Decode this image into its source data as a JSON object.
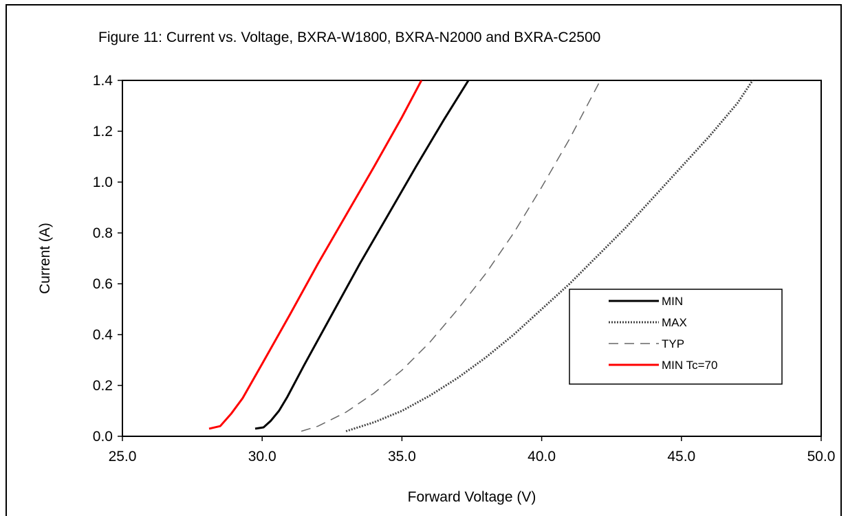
{
  "figure": {
    "title": "Figure 11:  Current vs. Voltage, BXRA-W1800, BXRA-N2000 and BXRA-C2500"
  },
  "chart_data": {
    "type": "line",
    "title": "Figure 11:  Current vs. Voltage, BXRA-W1800, BXRA-N2000 and BXRA-C2500",
    "xlabel": "Forward Voltage (V)",
    "ylabel": "Current  (A)",
    "xlim": [
      25.0,
      50.0
    ],
    "ylim": [
      0.0,
      1.4
    ],
    "x_ticks": [
      "25.0",
      "30.0",
      "35.0",
      "40.0",
      "45.0",
      "50.0"
    ],
    "y_ticks": [
      "0.0",
      "0.2",
      "0.4",
      "0.6",
      "0.8",
      "1.0",
      "1.2",
      "1.4"
    ],
    "grid": false,
    "legend_position": "right",
    "series": [
      {
        "name": "MIN",
        "color": "#000000",
        "style": "solid",
        "x": [
          29.75,
          30.05,
          30.3,
          30.6,
          30.9,
          31.5,
          32.5,
          33.5,
          34.5,
          35.5,
          36.5,
          37.38
        ],
        "y": [
          0.03,
          0.035,
          0.06,
          0.1,
          0.155,
          0.28,
          0.48,
          0.68,
          0.87,
          1.06,
          1.245,
          1.4
        ]
      },
      {
        "name": "MAX",
        "color": "#444444",
        "style": "dotted",
        "x": [
          33.0,
          34.0,
          35.0,
          36.0,
          37.0,
          38.0,
          39.0,
          40.0,
          41.0,
          42.0,
          43.0,
          44.0,
          45.0,
          46.0,
          47.0,
          47.55
        ],
        "y": [
          0.02,
          0.055,
          0.1,
          0.16,
          0.23,
          0.31,
          0.4,
          0.5,
          0.6,
          0.71,
          0.82,
          0.94,
          1.06,
          1.18,
          1.31,
          1.4
        ]
      },
      {
        "name": "TYP",
        "color": "#666666",
        "style": "dashed",
        "x": [
          31.4,
          32.0,
          33.0,
          34.0,
          35.0,
          36.0,
          37.0,
          38.0,
          39.0,
          40.0,
          41.0,
          42.1
        ],
        "y": [
          0.02,
          0.04,
          0.095,
          0.17,
          0.26,
          0.37,
          0.5,
          0.64,
          0.8,
          0.98,
          1.17,
          1.4
        ]
      },
      {
        "name": "MIN Tc=70",
        "color": "#ff0000",
        "style": "solid",
        "x": [
          28.1,
          28.5,
          28.9,
          29.3,
          30.0,
          31.0,
          32.0,
          33.0,
          34.0,
          35.0,
          35.7
        ],
        "y": [
          0.03,
          0.04,
          0.09,
          0.15,
          0.285,
          0.48,
          0.68,
          0.87,
          1.06,
          1.255,
          1.4
        ]
      }
    ]
  }
}
